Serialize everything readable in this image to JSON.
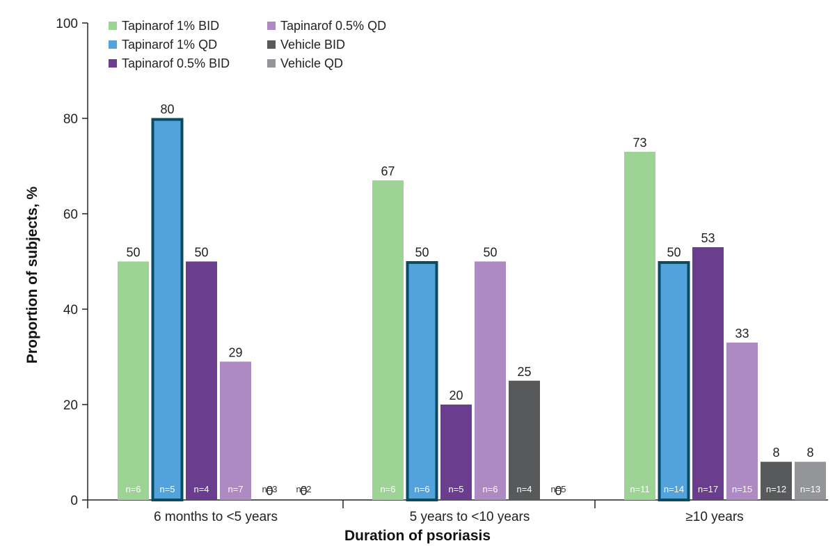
{
  "chart_data": {
    "type": "bar",
    "xlabel": "Duration of psoriasis",
    "ylabel": "Proportion of subjects, %",
    "ylim": [
      0,
      100
    ],
    "yticks": [
      0,
      20,
      40,
      60,
      80,
      100
    ],
    "legend_position": "top-left",
    "grid": false,
    "categories": [
      "6 months to <5 years",
      "5 years to <10 years",
      "≥10 years"
    ],
    "series": [
      {
        "name": "Tapinarof 1% BID",
        "color": "#9dd394",
        "values": [
          50,
          67,
          73
        ],
        "n": [
          "n=6",
          "n=6",
          "n=11"
        ]
      },
      {
        "name": "Tapinarof 1% QD",
        "color": "#52a2db",
        "highlight": true,
        "values": [
          80,
          50,
          50
        ],
        "n": [
          "n=5",
          "n=6",
          "n=14"
        ]
      },
      {
        "name": "Tapinarof 0.5% BID",
        "color": "#6b3d8e",
        "values": [
          50,
          20,
          53
        ],
        "n": [
          "n=4",
          "n=5",
          "n=17"
        ]
      },
      {
        "name": "Tapinarof 0.5% QD",
        "color": "#ad8ac2",
        "values": [
          29,
          50,
          33
        ],
        "n": [
          "n=7",
          "n=6",
          "n=15"
        ]
      },
      {
        "name": "Vehicle BID",
        "color": "#58595b",
        "values": [
          0,
          25,
          8
        ],
        "n": [
          "n=3",
          "n=4",
          "n=12"
        ]
      },
      {
        "name": "Vehicle QD",
        "color": "#939598",
        "values": [
          0,
          0,
          8
        ],
        "n": [
          "n=2",
          "n=5",
          "n=13"
        ]
      }
    ]
  }
}
